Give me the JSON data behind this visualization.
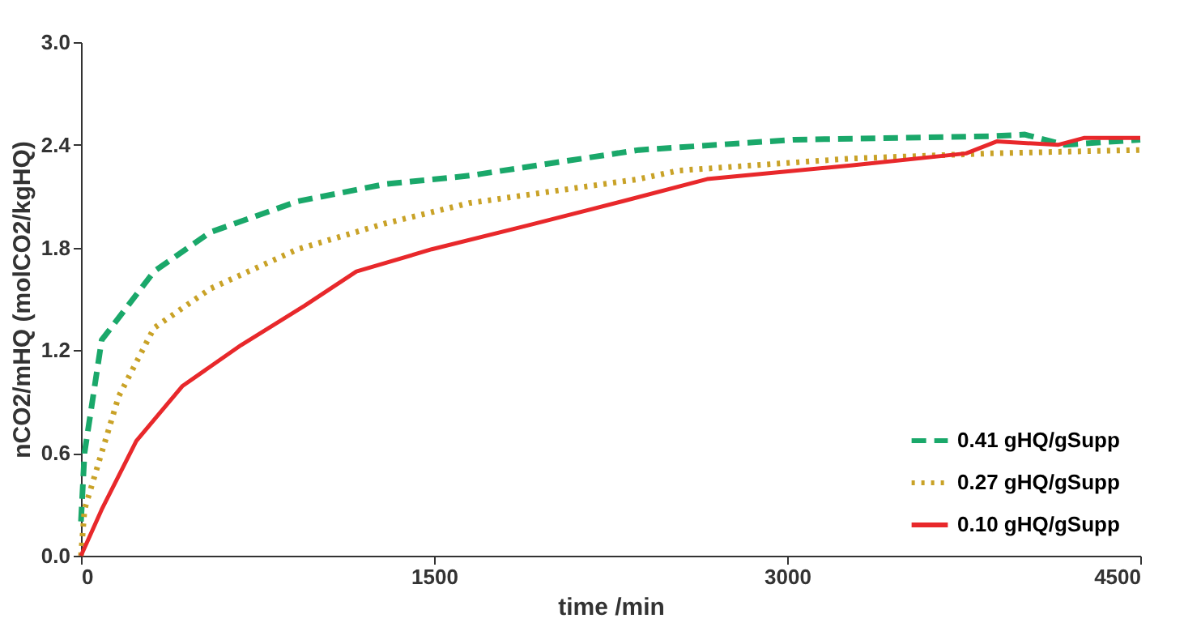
{
  "chart_data": {
    "type": "line",
    "xlabel": "time /min",
    "ylabel": "nCO2/mHQ (molCO2/kgHQ)",
    "xlim": [
      0,
      4500
    ],
    "xticks": [
      0,
      1500,
      3000,
      4500
    ],
    "ylim": [
      0,
      3.0
    ],
    "yticks": [
      {
        "value": 0,
        "label": "0.0"
      },
      0.6,
      1.2,
      1.8,
      2.4,
      {
        "value": 3,
        "label": "3.0"
      }
    ],
    "grid": false,
    "legend": "bottom right",
    "marker": "none",
    "series": [
      {
        "name": "0.41 gHQ/gSupp",
        "color": "#1aa86a",
        "line_style": "dashed",
        "x": [
          0,
          15,
          88,
          310,
          550,
          920,
          1290,
          1650,
          2370,
          3030,
          3860,
          4010,
          4180,
          4500
        ],
        "values": [
          0.2,
          0.6,
          1.26,
          1.66,
          1.89,
          2.07,
          2.17,
          2.22,
          2.37,
          2.43,
          2.45,
          2.46,
          2.4,
          2.43
        ]
      },
      {
        "name": "0.27 gHQ/gSupp",
        "color": "#c9a227",
        "line_style": "dotted",
        "x": [
          0,
          15,
          160,
          310,
          550,
          920,
          1290,
          1650,
          2370,
          2540,
          3270,
          3860,
          4500
        ],
        "values": [
          0.0,
          0.27,
          0.93,
          1.33,
          1.56,
          1.79,
          1.94,
          2.06,
          2.2,
          2.25,
          2.32,
          2.35,
          2.37
        ]
      },
      {
        "name": "0.10 gHQ/gSupp",
        "color": "#e8282b",
        "line_style": "solid",
        "x": [
          0,
          88,
          235,
          430,
          680,
          950,
          1170,
          1490,
          1900,
          2300,
          2660,
          3270,
          3760,
          3890,
          4150,
          4260,
          4500
        ],
        "values": [
          0.0,
          0.27,
          0.67,
          0.99,
          1.23,
          1.46,
          1.66,
          1.79,
          1.93,
          2.07,
          2.2,
          2.28,
          2.35,
          2.42,
          2.4,
          2.44,
          2.44
        ]
      }
    ]
  }
}
